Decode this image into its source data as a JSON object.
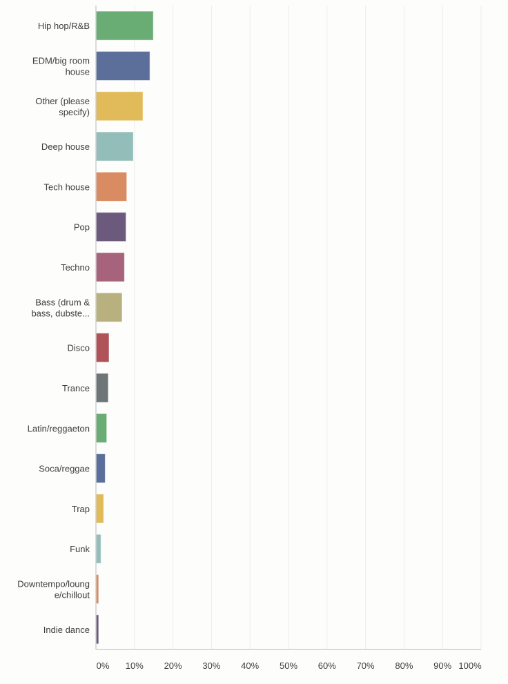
{
  "chart_data": {
    "type": "bar",
    "orientation": "horizontal",
    "title": "",
    "xlabel": "",
    "ylabel": "",
    "xlim": [
      0,
      100
    ],
    "grid": true,
    "categories": [
      [
        "Hip hop/R&B"
      ],
      [
        "EDM/big room",
        "house"
      ],
      [
        "Other (please",
        "specify)"
      ],
      [
        "Deep house"
      ],
      [
        "Tech house"
      ],
      [
        "Pop"
      ],
      [
        "Techno"
      ],
      [
        "Bass (drum &",
        "bass, dubste..."
      ],
      [
        "Disco"
      ],
      [
        "Trance"
      ],
      [
        "Latin/reggaeton"
      ],
      [
        "Soca/reggae"
      ],
      [
        "Trap"
      ],
      [
        "Funk"
      ],
      [
        "Downtempo/loung",
        "e/chillout"
      ],
      [
        "Indie dance"
      ]
    ],
    "values": [
      14.9,
      14.0,
      12.2,
      9.7,
      8.0,
      7.8,
      7.4,
      6.8,
      3.4,
      3.2,
      2.8,
      2.4,
      2.0,
      1.3,
      0.7,
      0.7
    ],
    "colors": [
      "#6aad74",
      "#5b6f9a",
      "#e1bb5a",
      "#92bdb9",
      "#d98b62",
      "#6b5a7c",
      "#a7627c",
      "#b8b17f",
      "#b05358",
      "#6e7577",
      "#6aad74",
      "#5b6f9a",
      "#e1bb5a",
      "#92bdb9",
      "#d98b62",
      "#6b5a7c"
    ],
    "xticks": [
      0,
      10,
      20,
      30,
      40,
      50,
      60,
      70,
      80,
      90,
      100
    ],
    "xtick_labels": [
      "0%",
      "10%",
      "20%",
      "30%",
      "40%",
      "50%",
      "60%",
      "70%",
      "80%",
      "90%",
      "100%"
    ]
  }
}
